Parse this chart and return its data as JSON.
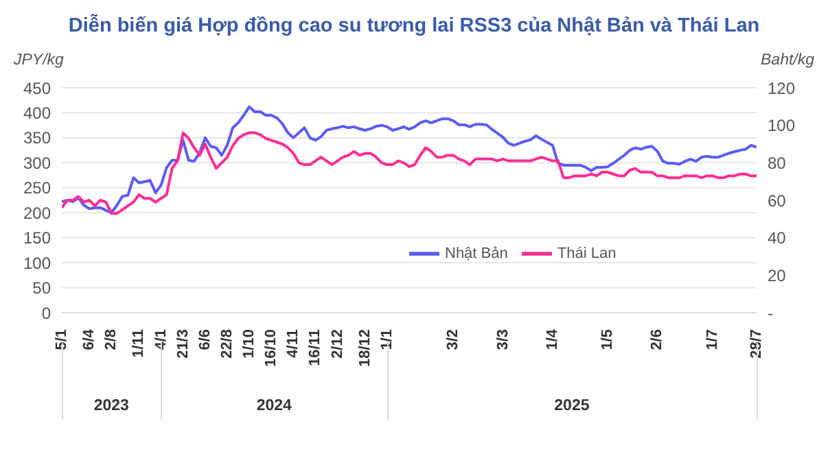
{
  "chart_data": {
    "type": "line",
    "title": "Diễn biến giá Hợp đồng cao su tương lai RSS3 của Nhật Bản và Thái Lan",
    "ylabel": "JPY/kg",
    "y2label": "Baht/kg",
    "categories": [
      "5/1",
      null,
      null,
      null,
      null,
      "6/4",
      null,
      null,
      null,
      "2/8",
      null,
      null,
      null,
      null,
      "1/11",
      null,
      null,
      null,
      "4/1",
      null,
      null,
      null,
      "21/3",
      null,
      null,
      null,
      "6/6",
      null,
      null,
      null,
      "22/8",
      null,
      null,
      null,
      "1/10",
      null,
      null,
      null,
      "16/10",
      null,
      null,
      null,
      "4/11",
      null,
      null,
      null,
      "16/11",
      null,
      null,
      null,
      "2/12",
      null,
      null,
      null,
      null,
      "18/12",
      null,
      null,
      null,
      "1/1",
      null,
      null,
      null,
      null,
      null,
      null,
      null,
      null,
      null,
      null,
      null,
      "3/2",
      null,
      null,
      null,
      null,
      null,
      null,
      null,
      null,
      "3/3",
      null,
      null,
      null,
      null,
      null,
      null,
      null,
      null,
      "1/4",
      null,
      null,
      null,
      null,
      null,
      null,
      null,
      null,
      null,
      "1/5",
      null,
      null,
      null,
      null,
      null,
      null,
      null,
      null,
      "2/6",
      null,
      null,
      null,
      null,
      null,
      null,
      null,
      null,
      null,
      "1/7",
      null,
      null,
      null,
      null,
      null,
      null,
      null,
      "28/7"
    ],
    "series": [
      {
        "name": "Nhật Bản",
        "color": "#5b5cf6",
        "values": [
          222,
          225,
          222,
          230,
          215,
          208,
          210,
          210,
          205,
          200,
          215,
          233,
          235,
          270,
          260,
          262,
          265,
          240,
          255,
          290,
          305,
          305,
          345,
          305,
          303,
          320,
          350,
          333,
          330,
          315,
          335,
          370,
          380,
          395,
          412,
          402,
          402,
          395,
          395,
          390,
          378,
          360,
          350,
          360,
          370,
          350,
          345,
          352,
          365,
          368,
          370,
          373,
          370,
          372,
          368,
          365,
          368,
          373,
          375,
          372,
          365,
          368,
          372,
          367,
          372,
          380,
          384,
          380,
          384,
          388,
          388,
          384,
          376,
          376,
          372,
          377,
          377,
          376,
          367,
          359,
          351,
          339,
          335,
          339,
          343,
          346,
          354,
          347,
          341,
          335,
          299,
          295,
          295,
          295,
          295,
          291,
          284,
          291,
          291,
          292,
          299,
          307,
          315,
          325,
          330,
          327,
          331,
          333,
          323,
          303,
          299,
          299,
          297,
          303,
          307,
          303,
          311,
          313,
          311,
          311,
          315,
          319,
          322,
          325,
          327,
          335,
          331
        ]
      },
      {
        "name": "Thái Lan",
        "color": "#ff2e93",
        "axis": "y2",
        "values": [
          56,
          60,
          60,
          62,
          59,
          60,
          57,
          60,
          59,
          53,
          53,
          55,
          57,
          59,
          63,
          61,
          61,
          59,
          61,
          63,
          77,
          81,
          96,
          93,
          88,
          84,
          90,
          83,
          77,
          80,
          83,
          89,
          93,
          95,
          96,
          96,
          95,
          93,
          92,
          91,
          90,
          88,
          85,
          80,
          79,
          79,
          81,
          83,
          81,
          79,
          81,
          83,
          84,
          86,
          84,
          85,
          85,
          83,
          80,
          79,
          79,
          81,
          80,
          78,
          79,
          84,
          88,
          86,
          83,
          83,
          84,
          84,
          82,
          81,
          79,
          82,
          82,
          82,
          82,
          81,
          82,
          81,
          81,
          81,
          81,
          81,
          82,
          83,
          82,
          81,
          81,
          72,
          72,
          73,
          73,
          73,
          74,
          73,
          75,
          75,
          74,
          73,
          73,
          76,
          77,
          75,
          75,
          75,
          73,
          73,
          72,
          72,
          72,
          73,
          73,
          73,
          72,
          73,
          73,
          72,
          72,
          73,
          73,
          74,
          74,
          73,
          73
        ]
      }
    ],
    "ylim": [
      0,
      450
    ],
    "yticks": [
      0,
      50,
      100,
      150,
      200,
      250,
      300,
      350,
      400,
      450
    ],
    "y2lim": [
      0,
      120
    ],
    "y2ticks": [
      {
        "value": 0,
        "label": "-"
      },
      20,
      40,
      60,
      80,
      100,
      120
    ],
    "annotations": [
      "2023",
      "2024",
      "2025"
    ],
    "grid": "y",
    "legend": "center",
    "marker": "none",
    "line_style": "solid"
  }
}
